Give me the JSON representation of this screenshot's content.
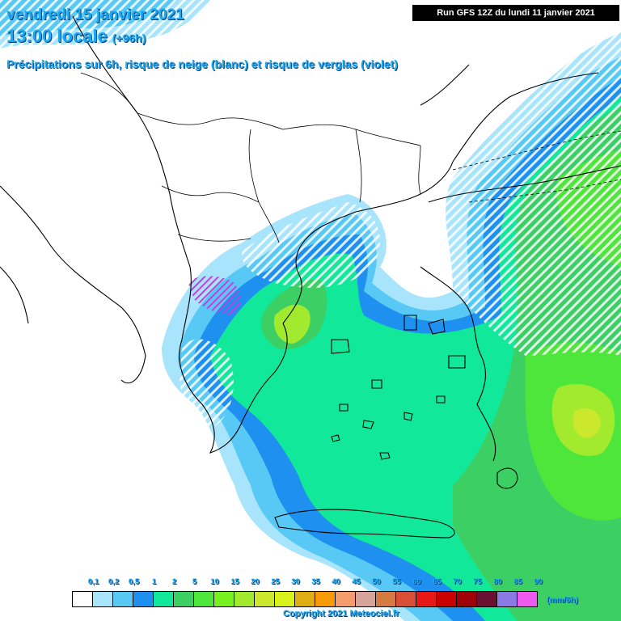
{
  "header": {
    "date_line": "vendredi 15 janvier 2021",
    "time_line": "13:00 locale",
    "lead": "(+96h)",
    "description": "Précipitations sur 6h, risque de neige (blanc) et risque de verglas (violet)"
  },
  "run_label": "Run GFS 12Z du lundi 11 janvier 2021",
  "legend": {
    "unit": "(mm/6h)",
    "labels": [
      "0,1",
      "0,2",
      "0,5",
      "1",
      "2",
      "5",
      "10",
      "15",
      "20",
      "25",
      "30",
      "35",
      "40",
      "45",
      "50",
      "55",
      "60",
      "65",
      "70",
      "75",
      "80",
      "85",
      "90"
    ],
    "colors": [
      "#ffffff",
      "#a8e4fb",
      "#58c8f5",
      "#1e90f0",
      "#12e89a",
      "#3ccf64",
      "#4ee63a",
      "#78f21e",
      "#a2ea2e",
      "#cbe82c",
      "#d9f21c",
      "#dfae14",
      "#f79a06",
      "#f49c6c",
      "#d7a49b",
      "#d77a42",
      "#d94e36",
      "#e81818",
      "#c80000",
      "#a0000a",
      "#6a1030",
      "#8b7ae6",
      "#ee5af0"
    ]
  },
  "copyright": "Copyright 2021 Meteociel.fr",
  "colors": {
    "title": "#1aa9f2",
    "light_blue": "#a8e4fb",
    "mid_blue": "#58c8f5",
    "blue": "#1e90f0",
    "cyan_green": "#12e89a",
    "green": "#3ccf64",
    "bright_green": "#4ee63a",
    "yellow_green": "#a2ea2e",
    "snow": "#ffffff",
    "ice": "#c040e0"
  }
}
